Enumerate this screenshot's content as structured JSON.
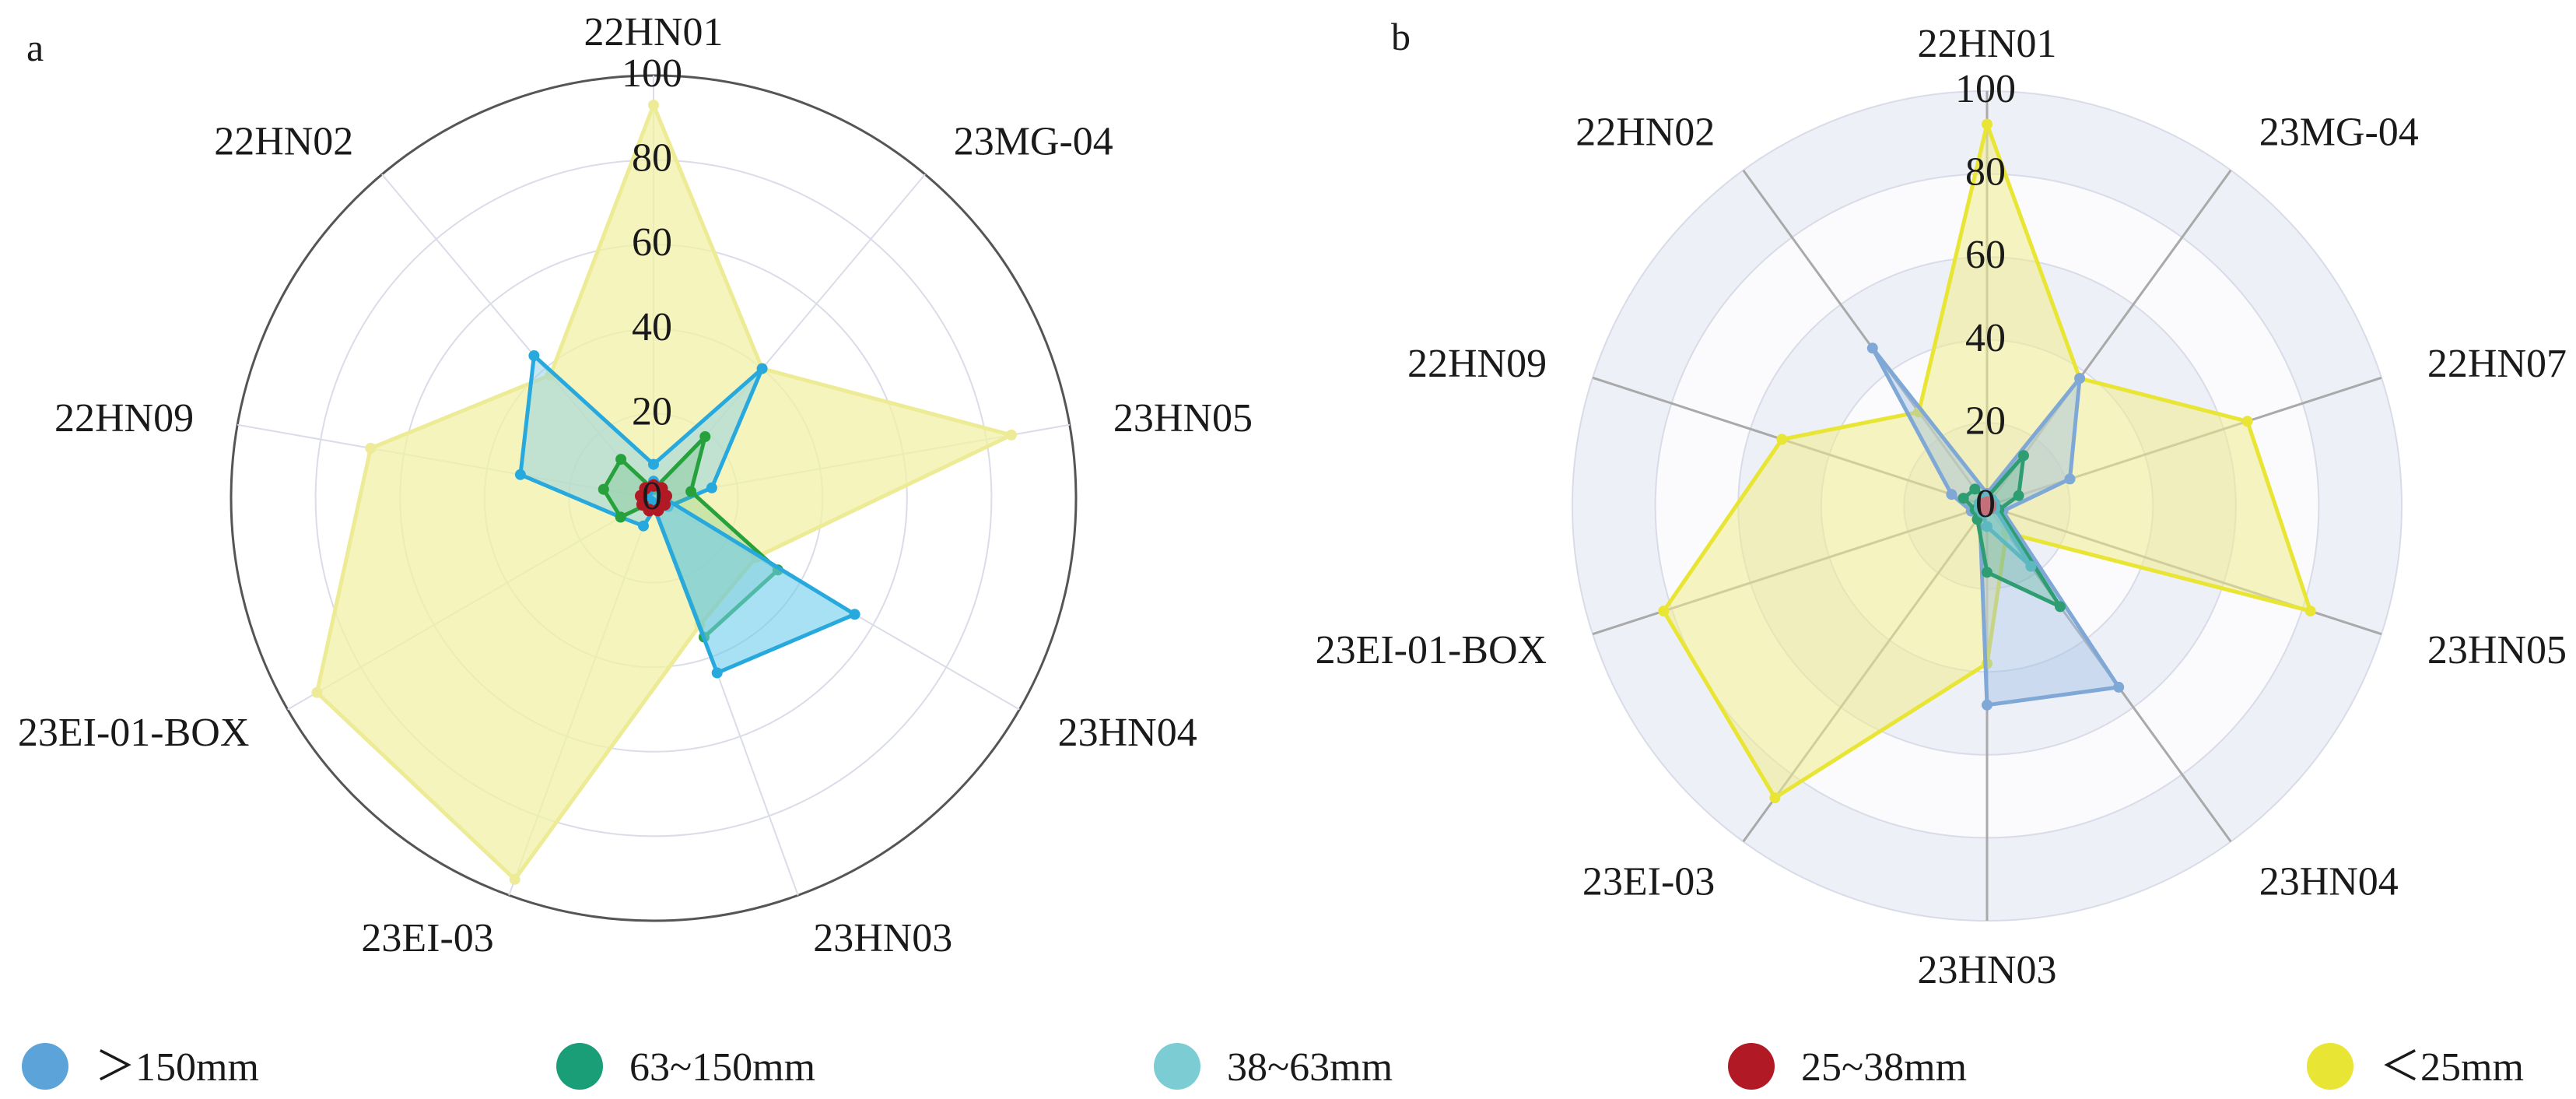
{
  "chart_data": [
    {
      "type": "radar",
      "panel_label": "a",
      "axes": [
        "22HN01",
        "23MG-04",
        "23HN05",
        "23HN04",
        "23HN03",
        "23EI-03",
        "23EI-01-BOX",
        "22HN09",
        "22HN02"
      ],
      "rlim": [
        0,
        100
      ],
      "rticks": [
        "0",
        "20",
        "40",
        "60",
        "80",
        "100"
      ],
      "grid": "circles",
      "outer_ring": true,
      "series": [
        {
          "key": "lt25",
          "values": [
            93,
            40,
            86,
            28,
            32,
            96,
            92,
            68,
            38
          ]
        },
        {
          "key": "gt150",
          "values": [
            8,
            40,
            14,
            4,
            2,
            7,
            9,
            32,
            44
          ]
        },
        {
          "key": "m63_150",
          "values": [
            2,
            19,
            9,
            34,
            35,
            1,
            9,
            12,
            12
          ]
        },
        {
          "key": "m38_63",
          "values": [
            4,
            3,
            2,
            55,
            44,
            1,
            1,
            2,
            2
          ]
        },
        {
          "key": "m25_38",
          "values": [
            3,
            3,
            3,
            3,
            3,
            3,
            3,
            3,
            3
          ]
        }
      ]
    },
    {
      "type": "radar",
      "panel_label": "b",
      "axes": [
        "22HN01",
        "23MG-04",
        "22HN07",
        "23HN05",
        "23HN04",
        "23HN03",
        "23EI-03",
        "23EI-01-BOX",
        "22HN09",
        "22HN02"
      ],
      "rlim": [
        0,
        100
      ],
      "rticks": [
        "0",
        "20",
        "40",
        "60",
        "80",
        "100"
      ],
      "grid": "alternating bands",
      "series": [
        {
          "key": "lt25",
          "values": [
            92,
            38,
            66,
            82,
            8,
            38,
            87,
            82,
            52,
            28
          ]
        },
        {
          "key": "gt150",
          "values": [
            3,
            38,
            21,
            4,
            54,
            48,
            3,
            4,
            9,
            47
          ]
        },
        {
          "key": "m63_150",
          "values": [
            2,
            15,
            8,
            3,
            30,
            16,
            4,
            3,
            6,
            5
          ]
        },
        {
          "key": "m38_63",
          "values": [
            2,
            2,
            2,
            2,
            18,
            5,
            2,
            2,
            2,
            2
          ]
        },
        {
          "key": "m25_38",
          "values": [
            1,
            1,
            1,
            1,
            1,
            1,
            1,
            1,
            1,
            1
          ]
        }
      ]
    }
  ],
  "legend": {
    "placement": "bottom",
    "entries": [
      {
        "key": "gt150",
        "label": "＞150mm",
        "color": "#5BA3D9"
      },
      {
        "key": "m63_150",
        "label": "63~150mm",
        "color": "#1A9E78"
      },
      {
        "key": "m38_63",
        "label": "38~63mm",
        "color": "#7CCCD4"
      },
      {
        "key": "m25_38",
        "label": "25~38mm",
        "color": "#B11A25"
      },
      {
        "key": "lt25",
        "label": "＜25mm",
        "color": "#E8E535"
      }
    ]
  },
  "styles": {
    "a": {
      "lt25": {
        "fill": "#F2F0A6",
        "fillOpacity": 0.75,
        "stroke": "#EDEB96",
        "dot": "#EDEB96"
      },
      "gt150": {
        "fill": "#8ED0E6",
        "fillOpacity": 0.5,
        "stroke": "#27A9DE",
        "dot": "#27A9DE"
      },
      "m63_150": {
        "fill": "#4FB56A",
        "fillOpacity": 0.25,
        "stroke": "#26A13C",
        "dot": "#26A13C"
      },
      "m38_63": {
        "fill": "#6ECCEC",
        "fillOpacity": 0.6,
        "stroke": "#27A9DE",
        "dot": "#27A9DE"
      },
      "m25_38": {
        "fill": "#ffffff",
        "fillOpacity": 0,
        "stroke": "#B11A25",
        "dot": "#B11A25",
        "dashed": true
      }
    },
    "b": {
      "lt25": {
        "fill": "#F0EC8C",
        "fillOpacity": 0.55,
        "stroke": "#E8E535",
        "dot": "#E8E535"
      },
      "gt150": {
        "fill": "#9FBFE2",
        "fillOpacity": 0.45,
        "stroke": "#7FA8D6",
        "dot": "#7FA8D6"
      },
      "m63_150": {
        "fill": "#4FAE88",
        "fillOpacity": 0.3,
        "stroke": "#2E9E72",
        "dot": "#2E9E72"
      },
      "m38_63": {
        "fill": "#7CCCD4",
        "fillOpacity": 0.5,
        "stroke": "#5EB8C2",
        "dot": "#5EB8C2"
      },
      "m25_38": {
        "fill": "#D98A8F",
        "fillOpacity": 0.4,
        "stroke": "#C4707A",
        "dot": "#C4707A"
      }
    }
  }
}
